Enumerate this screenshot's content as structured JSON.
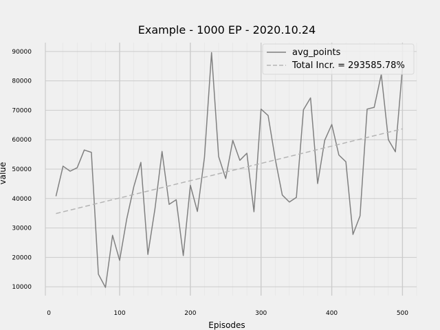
{
  "chart_data": {
    "type": "line",
    "title": "Example - 1000 EP - 2020.10.24",
    "xlabel": "Episodes",
    "ylabel": "value",
    "xlim": [
      -5,
      520
    ],
    "ylim": [
      7000,
      93000
    ],
    "xticks": [
      0,
      100,
      200,
      300,
      400,
      500
    ],
    "yticks": [
      10000,
      20000,
      30000,
      40000,
      50000,
      60000,
      70000,
      80000,
      90000
    ],
    "major_grid_x": [
      100,
      200,
      300,
      400,
      500
    ],
    "grid": true,
    "legend_position": "top-right",
    "series": [
      {
        "name": "avg_points",
        "color": "#808080",
        "style": "solid",
        "x": [
          10,
          20,
          30,
          40,
          50,
          60,
          70,
          80,
          90,
          100,
          110,
          120,
          130,
          140,
          150,
          160,
          170,
          180,
          190,
          200,
          210,
          220,
          230,
          240,
          250,
          260,
          270,
          280,
          290,
          300,
          310,
          320,
          330,
          340,
          350,
          360,
          370,
          380,
          390,
          400,
          410,
          420,
          430,
          440,
          450,
          460,
          470,
          480,
          490,
          500
        ],
        "y": [
          40800,
          51000,
          49300,
          50500,
          56500,
          55700,
          14300,
          9800,
          27500,
          19000,
          33000,
          44000,
          52300,
          21000,
          36500,
          56000,
          38000,
          39600,
          20600,
          44500,
          35600,
          54000,
          89600,
          54300,
          46800,
          59800,
          53000,
          55400,
          35500,
          70400,
          68200,
          53500,
          41200,
          38800,
          40400,
          70200,
          74200,
          45100,
          59800,
          65200,
          54800,
          52500,
          27800,
          34100,
          70400,
          71000,
          82200,
          60000,
          55900,
          84500
        ]
      },
      {
        "name": "Total Incr. = 293585.78%",
        "color": "#b4b4b4",
        "style": "dashed",
        "x": [
          10,
          500
        ],
        "y": [
          34900,
          63700
        ]
      }
    ]
  }
}
